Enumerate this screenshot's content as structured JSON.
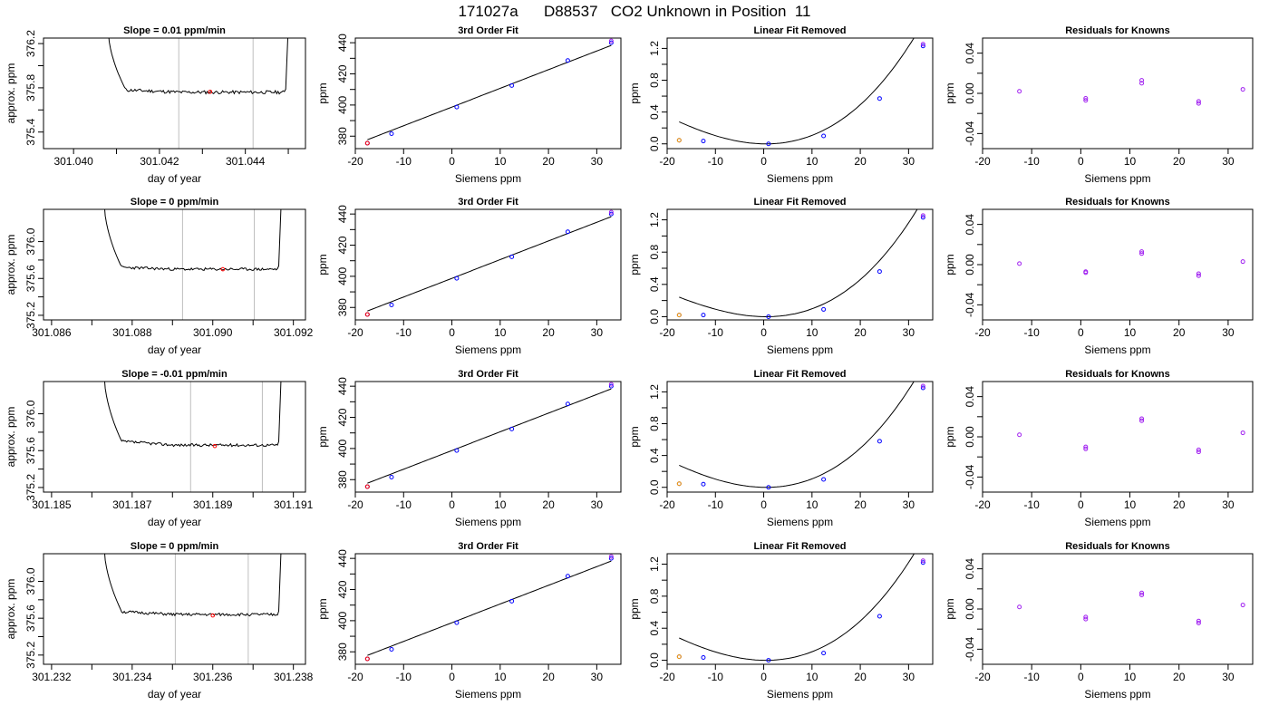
{
  "title": "171027a      D88537   CO2 Unknown in Position  11",
  "colors": {
    "axis": "#000000",
    "line": "#000000",
    "point_blue": "#0000ff",
    "point_purple": "#a020f0",
    "point_red": "#ff0000",
    "point_orange": "#ffa500",
    "vline": "#bebebe"
  },
  "chart_data": [
    {
      "id": "r1-trace",
      "type": "line",
      "title": "Slope =  0.01  ppm/min",
      "xlabel": "day of year",
      "ylabel": "approx. ppm",
      "xlim": [
        301.0393,
        301.0454
      ],
      "ylim": [
        375.25,
        376.25
      ],
      "xticks": [
        301.04,
        301.042,
        301.044
      ],
      "xtick_labels": [
        "301.040",
        "301.042",
        "301.044"
      ],
      "xminor": [
        301.041,
        301.043,
        301.045
      ],
      "yticks": [
        375.4,
        375.8,
        376.2
      ],
      "ytick_labels": [
        "375.4",
        "375.8",
        "376.2"
      ],
      "yminor": [
        375.6,
        376.0
      ],
      "vlines": [
        301.04245,
        301.04418
      ],
      "trace": {
        "x_start": 301.0408,
        "x_end": 301.045,
        "spike_top": 376.35,
        "base": 375.78,
        "plateau": 375.76,
        "seed": 11
      },
      "highlight": [
        301.04318,
        375.764
      ]
    },
    {
      "id": "r1-fit",
      "type": "scatter",
      "title": "3rd Order Fit",
      "xlabel": "Siemens ppm",
      "ylabel": "ppm",
      "xlim": [
        -20,
        35
      ],
      "ylim": [
        372,
        443
      ],
      "xticks": [
        -20,
        -10,
        0,
        10,
        20,
        30
      ],
      "xtick_labels": [
        "-20",
        "-10",
        "0",
        "10",
        "20",
        "30"
      ],
      "yticks": [
        380,
        400,
        420,
        440
      ],
      "ytick_labels": [
        "380",
        "400",
        "420",
        "440"
      ],
      "yminor": [
        390,
        410,
        430
      ],
      "points": [
        [
          -17.5,
          375.5
        ],
        [
          -12.5,
          381.6
        ],
        [
          1,
          398.7
        ],
        [
          12.4,
          412.5
        ],
        [
          24,
          428.6
        ],
        [
          33,
          440
        ]
      ],
      "fit": {
        "from": -17.5,
        "to": 33,
        "coef": [
          398.7,
          1.2,
          0,
          0
        ]
      }
    },
    {
      "id": "r1-lin",
      "type": "scatter",
      "title": "Linear Fit Removed",
      "xlabel": "Siemens ppm",
      "ylabel": "ppm",
      "xlim": [
        -20,
        35
      ],
      "ylim": [
        -0.06,
        1.33
      ],
      "xticks": [
        -20,
        -10,
        0,
        10,
        20,
        30
      ],
      "xtick_labels": [
        "-20",
        "-10",
        "0",
        "10",
        "20",
        "30"
      ],
      "yticks": [
        0,
        0.4,
        0.8,
        1.2
      ],
      "ytick_labels": [
        "0.0",
        "0.4",
        "0.8",
        "1.2"
      ],
      "yminor": [
        0.2,
        0.6,
        1.0
      ],
      "points": [
        [
          -17.5,
          0.045
        ],
        [
          -12.5,
          0.035
        ],
        [
          1,
          0.0
        ],
        [
          12.4,
          0.1
        ],
        [
          24,
          0.57
        ],
        [
          33,
          1.23
        ]
      ],
      "fit": {
        "from": -17.5,
        "to": 33,
        "coef": [
          0.0,
          -0.001,
          0.00105,
          1.15e-05
        ]
      },
      "unknown": [
        -17.5,
        0.045
      ]
    },
    {
      "id": "r1-res",
      "type": "scatter",
      "title": "Residuals for Knowns",
      "xlabel": "Siemens ppm",
      "ylabel": "ppm",
      "xlim": [
        -20,
        35
      ],
      "ylim": [
        -0.055,
        0.055
      ],
      "xticks": [
        -20,
        -10,
        0,
        10,
        20,
        30
      ],
      "xtick_labels": [
        "-20",
        "-10",
        "0",
        "10",
        "20",
        "30"
      ],
      "yticks": [
        -0.04,
        0,
        0.04
      ],
      "ytick_labels": [
        "-0.04",
        "0.00",
        "0.04"
      ],
      "yminor": [
        -0.02,
        0.02
      ],
      "points": [
        [
          -12.5,
          0.002
        ],
        [
          1,
          -0.005
        ],
        [
          1,
          -0.007
        ],
        [
          12.4,
          0.013
        ],
        [
          12.4,
          0.01
        ],
        [
          24,
          -0.008
        ],
        [
          24,
          -0.01
        ],
        [
          33,
          0.004
        ]
      ]
    },
    {
      "id": "r2-trace",
      "type": "line",
      "title": "Slope =  0  ppm/min",
      "xlabel": "day of year",
      "ylabel": "approx. ppm",
      "xlim": [
        301.0858,
        301.0923
      ],
      "ylim": [
        375.15,
        376.35
      ],
      "xticks": [
        301.086,
        301.088,
        301.09,
        301.092
      ],
      "xtick_labels": [
        "301.086",
        "301.088",
        "301.090",
        "301.092"
      ],
      "xminor": [
        301.087,
        301.089,
        301.091
      ],
      "yticks": [
        375.2,
        375.6,
        376.0
      ],
      "ytick_labels": [
        "375.2",
        "375.6",
        "376.0"
      ],
      "yminor": [
        375.4,
        375.8
      ],
      "vlines": [
        301.08925,
        301.09103
      ],
      "trace": {
        "x_start": 301.0873,
        "x_end": 301.0917,
        "spike_top": 376.45,
        "base": 375.72,
        "plateau": 375.7,
        "seed": 23
      },
      "highlight": [
        301.09025,
        375.7
      ]
    },
    {
      "id": "r2-fit",
      "type": "scatter",
      "title": "3rd Order Fit",
      "xlabel": "Siemens ppm",
      "ylabel": "ppm",
      "xlim": [
        -20,
        35
      ],
      "ylim": [
        372,
        443
      ],
      "xticks": [
        -20,
        -10,
        0,
        10,
        20,
        30
      ],
      "xtick_labels": [
        "-20",
        "-10",
        "0",
        "10",
        "20",
        "30"
      ],
      "yticks": [
        380,
        400,
        420,
        440
      ],
      "ytick_labels": [
        "380",
        "400",
        "420",
        "440"
      ],
      "yminor": [
        390,
        410,
        430
      ],
      "points": [
        [
          -17.5,
          375.5
        ],
        [
          -12.5,
          381.6
        ],
        [
          1,
          398.7
        ],
        [
          12.4,
          412.5
        ],
        [
          24,
          428.6
        ],
        [
          33,
          440
        ]
      ],
      "fit": {
        "from": -17.5,
        "to": 33,
        "coef": [
          398.7,
          1.2,
          0,
          0
        ]
      }
    },
    {
      "id": "r2-lin",
      "type": "scatter",
      "title": "Linear Fit Removed",
      "xlabel": "Siemens ppm",
      "ylabel": "ppm",
      "xlim": [
        -20,
        35
      ],
      "ylim": [
        -0.04,
        1.33
      ],
      "xticks": [
        -20,
        -10,
        0,
        10,
        20,
        30
      ],
      "xtick_labels": [
        "-20",
        "-10",
        "0",
        "10",
        "20",
        "30"
      ],
      "yticks": [
        0,
        0.4,
        0.8,
        1.2
      ],
      "ytick_labels": [
        "0.0",
        "0.4",
        "0.8",
        "1.2"
      ],
      "yminor": [
        0.2,
        0.6,
        1.0
      ],
      "points": [
        [
          -17.5,
          0.02
        ],
        [
          -12.5,
          0.02
        ],
        [
          1,
          0.0
        ],
        [
          12.4,
          0.09
        ],
        [
          24,
          0.56
        ],
        [
          33,
          1.23
        ]
      ],
      "fit": {
        "from": -17.5,
        "to": 33,
        "coef": [
          0.0,
          -0.001,
          0.00095,
          1.25e-05
        ]
      },
      "unknown": [
        -17.5,
        0.02
      ]
    },
    {
      "id": "r2-res",
      "type": "scatter",
      "title": "Residuals for Knowns",
      "xlabel": "Siemens ppm",
      "ylabel": "ppm",
      "xlim": [
        -20,
        35
      ],
      "ylim": [
        -0.055,
        0.055
      ],
      "xticks": [
        -20,
        -10,
        0,
        10,
        20,
        30
      ],
      "xtick_labels": [
        "-20",
        "-10",
        "0",
        "10",
        "20",
        "30"
      ],
      "yticks": [
        -0.04,
        0,
        0.04
      ],
      "ytick_labels": [
        "-0.04",
        "0.00",
        "0.04"
      ],
      "yminor": [
        -0.02,
        0.02
      ],
      "points": [
        [
          -12.5,
          0.001
        ],
        [
          1,
          -0.007
        ],
        [
          1,
          -0.008
        ],
        [
          12.4,
          0.013
        ],
        [
          12.4,
          0.011
        ],
        [
          24,
          -0.009
        ],
        [
          24,
          -0.011
        ],
        [
          33,
          0.003
        ]
      ]
    },
    {
      "id": "r3-trace",
      "type": "line",
      "title": "Slope =  -0.01  ppm/min",
      "xlabel": "day of year",
      "ylabel": "approx. ppm",
      "xlim": [
        301.1848,
        301.1913
      ],
      "ylim": [
        375.15,
        376.35
      ],
      "xticks": [
        301.185,
        301.187,
        301.189,
        301.191
      ],
      "xtick_labels": [
        "301.185",
        "301.187",
        "301.189",
        "301.191"
      ],
      "xminor": [
        301.186,
        301.188,
        301.19
      ],
      "yticks": [
        375.2,
        375.6,
        376.0
      ],
      "ytick_labels": [
        "375.2",
        "375.6",
        "376.0"
      ],
      "yminor": [
        375.4,
        375.8
      ],
      "vlines": [
        301.18845,
        301.19023
      ],
      "trace": {
        "x_start": 301.1863,
        "x_end": 301.1907,
        "spike_top": 376.45,
        "base": 375.7,
        "plateau": 375.66,
        "seed": 37
      },
      "highlight": [
        301.18905,
        375.65
      ]
    },
    {
      "id": "r3-fit",
      "type": "scatter",
      "title": "3rd Order Fit",
      "xlabel": "Siemens ppm",
      "ylabel": "ppm",
      "xlim": [
        -20,
        35
      ],
      "ylim": [
        372,
        443
      ],
      "xticks": [
        -20,
        -10,
        0,
        10,
        20,
        30
      ],
      "xtick_labels": [
        "-20",
        "-10",
        "0",
        "10",
        "20",
        "30"
      ],
      "yticks": [
        380,
        400,
        420,
        440
      ],
      "ytick_labels": [
        "380",
        "400",
        "420",
        "440"
      ],
      "yminor": [
        390,
        410,
        430
      ],
      "points": [
        [
          -17.5,
          375.5
        ],
        [
          -12.5,
          381.6
        ],
        [
          1,
          398.7
        ],
        [
          12.4,
          412.5
        ],
        [
          24,
          428.6
        ],
        [
          33,
          440
        ]
      ],
      "fit": {
        "from": -17.5,
        "to": 33,
        "coef": [
          398.7,
          1.2,
          0,
          0
        ]
      }
    },
    {
      "id": "r3-lin",
      "type": "scatter",
      "title": "Linear Fit Removed",
      "xlabel": "Siemens ppm",
      "ylabel": "ppm",
      "xlim": [
        -20,
        35
      ],
      "ylim": [
        -0.06,
        1.33
      ],
      "xticks": [
        -20,
        -10,
        0,
        10,
        20,
        30
      ],
      "xtick_labels": [
        "-20",
        "-10",
        "0",
        "10",
        "20",
        "30"
      ],
      "yticks": [
        0,
        0.4,
        0.8,
        1.2
      ],
      "ytick_labels": [
        "0.0",
        "0.4",
        "0.8",
        "1.2"
      ],
      "yminor": [
        0.2,
        0.6,
        1.0
      ],
      "points": [
        [
          -17.5,
          0.045
        ],
        [
          -12.5,
          0.04
        ],
        [
          1,
          0.0
        ],
        [
          12.4,
          0.1
        ],
        [
          24,
          0.58
        ],
        [
          33,
          1.25
        ]
      ],
      "fit": {
        "from": -17.5,
        "to": 33,
        "coef": [
          0.0,
          -0.001,
          0.00105,
          1.15e-05
        ]
      },
      "unknown": [
        -17.5,
        0.045
      ]
    },
    {
      "id": "r3-res",
      "type": "scatter",
      "title": "Residuals for Knowns",
      "xlabel": "Siemens ppm",
      "ylabel": "ppm",
      "xlim": [
        -20,
        35
      ],
      "ylim": [
        -0.055,
        0.055
      ],
      "xticks": [
        -20,
        -10,
        0,
        10,
        20,
        30
      ],
      "xtick_labels": [
        "-20",
        "-10",
        "0",
        "10",
        "20",
        "30"
      ],
      "yticks": [
        -0.04,
        0,
        0.04
      ],
      "ytick_labels": [
        "-0.04",
        "0.00",
        "0.04"
      ],
      "yminor": [
        -0.02,
        0.02
      ],
      "points": [
        [
          -12.5,
          0.002
        ],
        [
          1,
          -0.01
        ],
        [
          1,
          -0.012
        ],
        [
          12.4,
          0.018
        ],
        [
          12.4,
          0.016
        ],
        [
          24,
          -0.013
        ],
        [
          24,
          -0.015
        ],
        [
          33,
          0.004
        ]
      ]
    },
    {
      "id": "r4-trace",
      "type": "line",
      "title": "Slope =  0  ppm/min",
      "xlabel": "day of year",
      "ylabel": "approx. ppm",
      "xlim": [
        301.2318,
        301.2383
      ],
      "ylim": [
        375.1,
        376.3
      ],
      "xticks": [
        301.232,
        301.234,
        301.236,
        301.238
      ],
      "xtick_labels": [
        "301.232",
        "301.234",
        "301.236",
        "301.238"
      ],
      "xminor": [
        301.233,
        301.235,
        301.237
      ],
      "yticks": [
        375.2,
        375.6,
        376.0
      ],
      "ytick_labels": [
        "375.2",
        "375.6",
        "376.0"
      ],
      "yminor": [
        375.4,
        375.8
      ],
      "vlines": [
        301.23507,
        301.23688
      ],
      "trace": {
        "x_start": 301.2333,
        "x_end": 301.2377,
        "spike_top": 376.4,
        "base": 375.67,
        "plateau": 375.64,
        "seed": 51
      },
      "highlight": [
        301.236,
        375.63
      ]
    },
    {
      "id": "r4-fit",
      "type": "scatter",
      "title": "3rd Order Fit",
      "xlabel": "Siemens ppm",
      "ylabel": "ppm",
      "xlim": [
        -20,
        35
      ],
      "ylim": [
        372,
        443
      ],
      "xticks": [
        -20,
        -10,
        0,
        10,
        20,
        30
      ],
      "xtick_labels": [
        "-20",
        "-10",
        "0",
        "10",
        "20",
        "30"
      ],
      "yticks": [
        380,
        400,
        420,
        440
      ],
      "ytick_labels": [
        "380",
        "400",
        "420",
        "440"
      ],
      "yminor": [
        390,
        410,
        430
      ],
      "points": [
        [
          -17.5,
          375.5
        ],
        [
          -12.5,
          381.6
        ],
        [
          1,
          398.7
        ],
        [
          12.4,
          412.5
        ],
        [
          24,
          428.6
        ],
        [
          33,
          440
        ]
      ],
      "fit": {
        "from": -17.5,
        "to": 33,
        "coef": [
          398.7,
          1.2,
          0,
          0
        ]
      }
    },
    {
      "id": "r4-lin",
      "type": "scatter",
      "title": "Linear Fit Removed",
      "xlabel": "Siemens ppm",
      "ylabel": "ppm",
      "xlim": [
        -20,
        35
      ],
      "ylim": [
        -0.05,
        1.33
      ],
      "xticks": [
        -20,
        -10,
        0,
        10,
        20,
        30
      ],
      "xtick_labels": [
        "-20",
        "-10",
        "0",
        "10",
        "20",
        "30"
      ],
      "yticks": [
        0,
        0.4,
        0.8,
        1.2
      ],
      "ytick_labels": [
        "0.0",
        "0.4",
        "0.8",
        "1.2"
      ],
      "yminor": [
        0.2,
        0.6,
        1.0
      ],
      "points": [
        [
          -17.5,
          0.045
        ],
        [
          -12.5,
          0.035
        ],
        [
          1,
          0.0
        ],
        [
          12.4,
          0.09
        ],
        [
          24,
          0.55
        ],
        [
          33,
          1.22
        ]
      ],
      "fit": {
        "from": -17.5,
        "to": 33,
        "coef": [
          0.0,
          -0.001,
          0.00105,
          1.13e-05
        ]
      },
      "unknown": [
        -17.5,
        0.045
      ]
    },
    {
      "id": "r4-res",
      "type": "scatter",
      "title": "Residuals for Knowns",
      "xlabel": "Siemens ppm",
      "ylabel": "ppm",
      "xlim": [
        -20,
        35
      ],
      "ylim": [
        -0.055,
        0.055
      ],
      "xticks": [
        -20,
        -10,
        0,
        10,
        20,
        30
      ],
      "xtick_labels": [
        "-20",
        "-10",
        "0",
        "10",
        "20",
        "30"
      ],
      "yticks": [
        -0.04,
        0,
        0.04
      ],
      "ytick_labels": [
        "-0.04",
        "0.00",
        "0.04"
      ],
      "yminor": [
        -0.02,
        0.02
      ],
      "points": [
        [
          -12.5,
          0.002
        ],
        [
          1,
          -0.008
        ],
        [
          1,
          -0.01
        ],
        [
          12.4,
          0.016
        ],
        [
          12.4,
          0.014
        ],
        [
          24,
          -0.012
        ],
        [
          24,
          -0.014
        ],
        [
          33,
          0.004
        ]
      ]
    }
  ]
}
